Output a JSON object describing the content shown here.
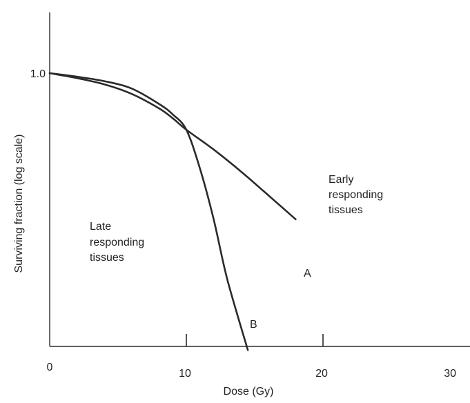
{
  "chart_data": {
    "type": "line",
    "title": "",
    "xlabel": "Dose (Gy)",
    "ylabel": "Surviving fraction (log scale)",
    "xlim": [
      0,
      30
    ],
    "x_ticks": [
      {
        "value": 0,
        "label": "0"
      },
      {
        "value": 10,
        "label": "10"
      },
      {
        "value": 20,
        "label": "20"
      },
      {
        "value": 30,
        "label": "30"
      }
    ],
    "y_scale": "log",
    "y_ticks": [
      {
        "value": 1.0,
        "label": "1.0"
      }
    ],
    "grid": false,
    "series": [
      {
        "name": "A",
        "color": "#2a2a2a",
        "points": [
          [
            0,
            1.0
          ],
          [
            2,
            0.93
          ],
          [
            4,
            0.85
          ],
          [
            6,
            0.74
          ],
          [
            8,
            0.6
          ],
          [
            9,
            0.52
          ],
          [
            10,
            0.44
          ],
          [
            12,
            0.33
          ],
          [
            14,
            0.24
          ],
          [
            16,
            0.17
          ],
          [
            18,
            0.12
          ]
        ]
      },
      {
        "name": "B",
        "color": "#2a2a2a",
        "points": [
          [
            0,
            1.0
          ],
          [
            2,
            0.95
          ],
          [
            4,
            0.89
          ],
          [
            6,
            0.8
          ],
          [
            8,
            0.64
          ],
          [
            9,
            0.55
          ],
          [
            10,
            0.44
          ],
          [
            11,
            0.25
          ],
          [
            12,
            0.12
          ],
          [
            13,
            0.05
          ],
          [
            14.5,
            0.018
          ]
        ]
      }
    ],
    "annotations": [
      {
        "id": "late",
        "lines": [
          "Late",
          "responding",
          "tissues"
        ]
      },
      {
        "id": "early",
        "lines": [
          "Early",
          "responding",
          "tissues"
        ]
      }
    ]
  }
}
